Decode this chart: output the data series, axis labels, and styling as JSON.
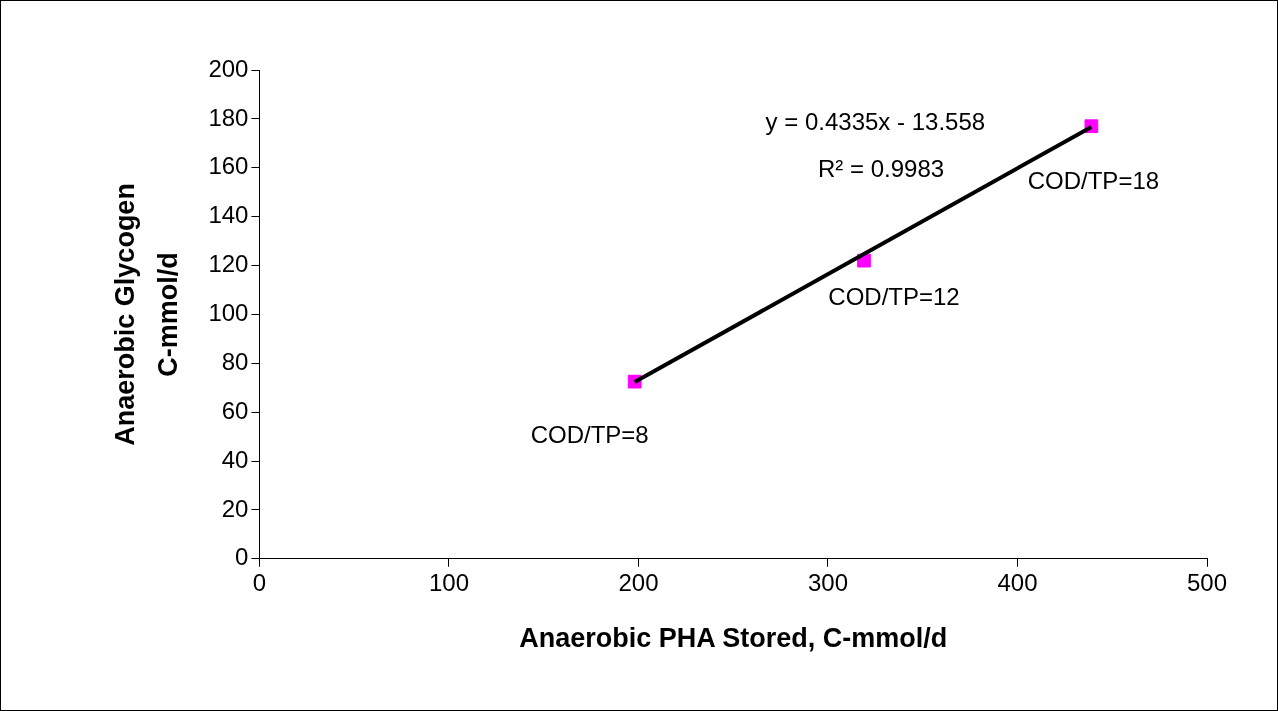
{
  "chart_data": {
    "type": "scatter",
    "xlabel": "Anaerobic PHA Stored, C-mmol/d",
    "ylabel": "Anaerobic Glycogen\nC-mmol/d",
    "x": [
      198,
      319,
      439
    ],
    "series": [
      {
        "type": "scatter",
        "color": "#ff00ff",
        "marker": "square",
        "values": [
          72.5,
          122,
          177
        ]
      },
      {
        "type": "line",
        "color": "#000000",
        "marker": "none",
        "line_style": "solid",
        "x": [
          198,
          439
        ],
        "values": [
          72.3,
          176.7
        ]
      }
    ],
    "xlim": [
      0,
      500
    ],
    "xticks": [
      0,
      100,
      200,
      300,
      400,
      500
    ],
    "ylim": [
      0,
      200
    ],
    "yticks": [
      0,
      20,
      40,
      60,
      80,
      100,
      120,
      140,
      160,
      180,
      200
    ],
    "grid": false,
    "legend": false,
    "annotations": [
      "y = 0.4335x - 13.558",
      "R² = 0.9983",
      {
        "text": "COD/TP=8",
        "x": 198,
        "y": 72.5
      },
      {
        "text": "COD/TP=12",
        "x": 319,
        "y": 122
      },
      {
        "text": "COD/TP=18",
        "x": 439,
        "y": 177
      }
    ]
  }
}
